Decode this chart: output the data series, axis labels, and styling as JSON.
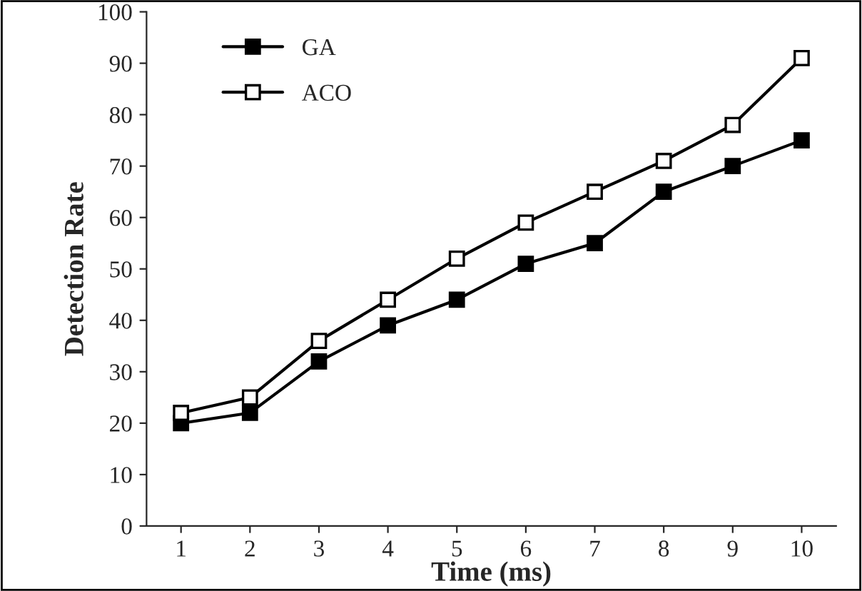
{
  "chart_data": {
    "type": "line",
    "xlabel": "Time (ms)",
    "ylabel": "Detection Rate",
    "categories": [
      "1",
      "2",
      "3",
      "4",
      "5",
      "6",
      "7",
      "8",
      "9",
      "10"
    ],
    "series": [
      {
        "name": "GA",
        "color": "#000000",
        "values": [
          20,
          22,
          32,
          39,
          44,
          51,
          55,
          65,
          70,
          75
        ]
      },
      {
        "name": "ACO",
        "color": "#000000",
        "values": [
          22,
          25,
          36,
          44,
          52,
          59,
          65,
          71,
          78,
          91
        ]
      }
    ],
    "ylim": [
      0,
      100
    ],
    "yticks": [
      0,
      10,
      20,
      30,
      40,
      50,
      60,
      70,
      80,
      90,
      100
    ],
    "grid": false,
    "legend": "top left",
    "marker": "square",
    "line_style": "solid"
  }
}
